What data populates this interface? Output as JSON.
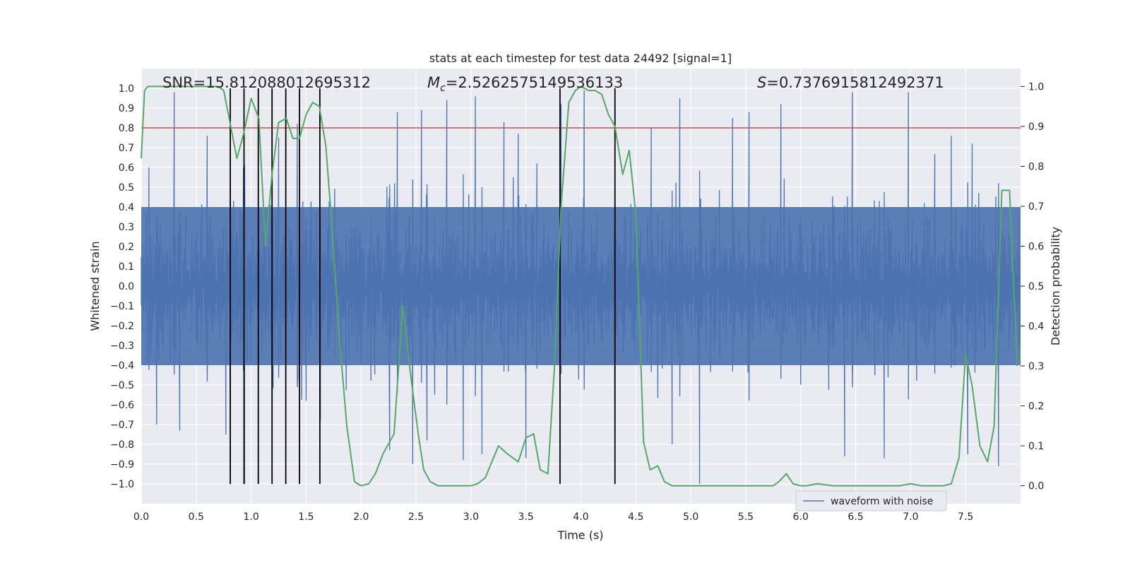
{
  "chart_data": {
    "type": "line",
    "title": "stats at each timestep for test data 24492 [signal=1]",
    "xlabel": "Time (s)",
    "ylabel": "Whitened strain",
    "y2label": "Detection probability",
    "xlim": [
      0.0,
      8.0
    ],
    "ylim": [
      -1.1,
      1.1
    ],
    "y2lim": [
      -0.045,
      1.045
    ],
    "x_ticks": [
      0.0,
      0.5,
      1.0,
      1.5,
      2.0,
      2.5,
      3.0,
      3.5,
      4.0,
      4.5,
      5.0,
      5.5,
      6.0,
      6.5,
      7.0,
      7.5
    ],
    "x_tick_labels": [
      "0.0",
      "0.5",
      "1.0",
      "1.5",
      "2.0",
      "2.5",
      "3.0",
      "3.5",
      "4.0",
      "4.5",
      "5.0",
      "5.5",
      "6.0",
      "6.5",
      "7.0",
      "7.5"
    ],
    "y_ticks": [
      1.0,
      0.9,
      0.8,
      0.7,
      0.6,
      0.5,
      0.4,
      0.3,
      0.2,
      0.1,
      0.0,
      -0.1,
      -0.2,
      -0.3,
      -0.4,
      -0.5,
      -0.6,
      -0.7,
      -0.8,
      -0.9,
      -1.0
    ],
    "y_tick_labels": [
      "1.0",
      "0.9",
      "0.8",
      "0.7",
      "0.6",
      "0.5",
      "0.4",
      "0.3",
      "0.2",
      "0.1",
      "0.0",
      "−0.1",
      "−0.2",
      "−0.3",
      "−0.4",
      "−0.5",
      "−0.6",
      "−0.7",
      "−0.8",
      "−0.9",
      "−1.0"
    ],
    "y2_ticks": [
      1.0,
      0.9,
      0.8,
      0.7,
      0.6,
      0.5,
      0.4,
      0.3,
      0.2,
      0.1,
      0.0
    ],
    "y2_tick_labels": [
      "1.0",
      "0.9",
      "0.8",
      "0.7",
      "0.6",
      "0.5",
      "0.4",
      "0.3",
      "0.2",
      "0.1",
      "0.0"
    ],
    "grid": true,
    "legend": {
      "placement": "bottom-right",
      "entries": [
        "waveform with noise"
      ]
    },
    "annotations": {
      "snr": "SNR=15.812088012695312",
      "mc_symbol": "M",
      "mc_subscript": "c",
      "mc_value": "=2.5262575149536133",
      "s_symbol": "S",
      "s_value": "=0.7376915812492371"
    },
    "threshold": {
      "value": 0.8,
      "axis": "left",
      "color": "#c44e52"
    },
    "event_markers_x": [
      0.81,
      0.935,
      1.065,
      1.19,
      1.315,
      1.44,
      1.625,
      3.81,
      4.31
    ],
    "event_marker_range": [
      -1.0,
      1.0
    ],
    "strain": {
      "name": "waveform with noise",
      "color": "#4c72b0",
      "duration": 8.0,
      "samples": 1600,
      "envelope_std": 0.19,
      "spike_max": [
        [
          0.07,
          0.6
        ],
        [
          0.3,
          0.98
        ],
        [
          0.6,
          0.76
        ],
        [
          0.93,
          0.6
        ],
        [
          1.25,
          0.75
        ],
        [
          1.42,
          0.82
        ],
        [
          1.63,
          0.55
        ],
        [
          2.33,
          0.88
        ],
        [
          2.55,
          0.89
        ],
        [
          2.78,
          0.94
        ],
        [
          3.04,
          0.96
        ],
        [
          3.3,
          0.83
        ],
        [
          3.43,
          0.77
        ],
        [
          3.6,
          0.62
        ],
        [
          3.82,
          0.92
        ],
        [
          4.03,
          0.99
        ],
        [
          4.64,
          0.8
        ],
        [
          4.9,
          0.95
        ],
        [
          5.38,
          0.85
        ],
        [
          5.53,
          0.88
        ],
        [
          5.82,
          0.92
        ],
        [
          6.47,
          0.98
        ],
        [
          6.98,
          0.98
        ],
        [
          7.37,
          0.76
        ],
        [
          7.56,
          0.72
        ]
      ],
      "spike_min": [
        [
          0.14,
          -0.7
        ],
        [
          0.35,
          -0.73
        ],
        [
          0.77,
          -0.75
        ],
        [
          0.81,
          -0.92
        ],
        [
          0.94,
          -1.0
        ],
        [
          1.5,
          -0.58
        ],
        [
          1.63,
          -0.68
        ],
        [
          2.26,
          -0.83
        ],
        [
          2.47,
          -0.9
        ],
        [
          2.6,
          -0.78
        ],
        [
          2.93,
          -0.88
        ],
        [
          3.1,
          -0.85
        ],
        [
          3.5,
          -0.87
        ],
        [
          4.31,
          -0.84
        ],
        [
          4.83,
          -0.8
        ],
        [
          5.08,
          -1.0
        ],
        [
          6.4,
          -0.86
        ],
        [
          6.76,
          -0.87
        ],
        [
          7.52,
          -0.85
        ],
        [
          7.8,
          -0.91
        ]
      ]
    },
    "probability": {
      "name": "Detection probability",
      "color": "#55a868",
      "x": [
        0.0,
        0.03,
        0.06,
        0.12,
        0.2,
        0.3,
        0.4,
        0.5,
        0.6,
        0.7,
        0.75,
        0.8,
        0.87,
        0.93,
        1.0,
        1.07,
        1.13,
        1.19,
        1.25,
        1.32,
        1.38,
        1.44,
        1.5,
        1.56,
        1.62,
        1.68,
        1.74,
        1.8,
        1.87,
        1.94,
        2.0,
        2.07,
        2.13,
        2.2,
        2.3,
        2.38,
        2.45,
        2.52,
        2.57,
        2.63,
        2.7,
        2.8,
        2.9,
        3.0,
        3.06,
        3.13,
        3.25,
        3.33,
        3.43,
        3.5,
        3.57,
        3.63,
        3.7,
        3.76,
        3.82,
        3.89,
        3.95,
        4.0,
        4.07,
        4.13,
        4.19,
        4.25,
        4.31,
        4.38,
        4.44,
        4.5,
        4.57,
        4.63,
        4.7,
        4.76,
        4.83,
        4.9,
        5.0,
        5.1,
        5.2,
        5.35,
        5.5,
        5.62,
        5.75,
        5.8,
        5.87,
        5.93,
        6.0,
        6.05,
        6.15,
        6.3,
        6.5,
        6.7,
        6.9,
        7.0,
        7.1,
        7.2,
        7.3,
        7.37,
        7.44,
        7.5,
        7.56,
        7.63,
        7.7,
        7.76,
        7.83,
        7.9,
        7.97
      ],
      "values": [
        0.82,
        0.99,
        1.0,
        1.0,
        1.0,
        1.0,
        1.0,
        1.0,
        1.0,
        1.0,
        0.99,
        0.92,
        0.82,
        0.88,
        0.97,
        0.92,
        0.6,
        0.78,
        0.91,
        0.92,
        0.87,
        0.87,
        0.93,
        0.96,
        0.95,
        0.85,
        0.63,
        0.38,
        0.15,
        0.01,
        0.0,
        0.005,
        0.03,
        0.08,
        0.13,
        0.45,
        0.28,
        0.13,
        0.04,
        0.01,
        0.0,
        0.0,
        0.0,
        0.0,
        0.005,
        0.02,
        0.1,
        0.08,
        0.06,
        0.12,
        0.13,
        0.04,
        0.03,
        0.3,
        0.7,
        0.96,
        0.99,
        1.0,
        0.99,
        0.99,
        0.98,
        0.93,
        0.9,
        0.78,
        0.84,
        0.68,
        0.11,
        0.04,
        0.05,
        0.01,
        0.0,
        0.0,
        0.0,
        0.0,
        0.0,
        0.0,
        0.0,
        0.0,
        0.0,
        0.01,
        0.03,
        0.005,
        0.0,
        0.0,
        0.005,
        0.0,
        0.0,
        0.0,
        0.0,
        0.005,
        0.0,
        0.0,
        0.0,
        0.005,
        0.07,
        0.33,
        0.25,
        0.1,
        0.06,
        0.15,
        0.74,
        0.74,
        0.3
      ]
    }
  }
}
